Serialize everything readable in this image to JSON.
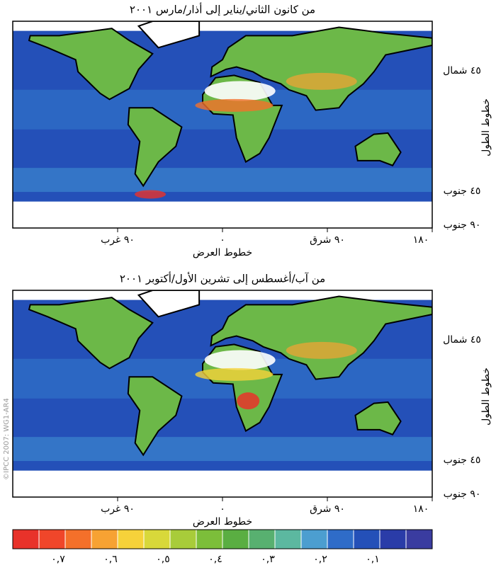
{
  "panels": [
    {
      "title": "من كانون الثاني/يناير إلى أذار/مارس ٢٠٠١"
    },
    {
      "title": "من آب/أغسطس إلى تشرين الأول/أكتوبر ٢٠٠١"
    }
  ],
  "x_axis": {
    "title": "خطوط العرض",
    "ticks": [
      "٩٠ غرب",
      "٠",
      "٩٠ شرق",
      "١٨٠"
    ]
  },
  "y_axis": {
    "title": "خطوط الطول",
    "ticks": [
      "٤٥ شمال",
      "٤٥ جنوب",
      "٩٠ جنوب"
    ]
  },
  "credit": "©IPCC 2007: WG1-AR4",
  "colorbar": {
    "colors": [
      "#e8322a",
      "#f0462a",
      "#f4702a",
      "#f7a233",
      "#f6d23a",
      "#d8d83a",
      "#a8cc3a",
      "#7cbe3a",
      "#5aae42",
      "#58b070",
      "#5cb8a0",
      "#4c9ed0",
      "#2f6cc8",
      "#2450b8",
      "#2a3ca8",
      "#3a3ca0"
    ],
    "labels": [
      "٠,٧",
      "٠,٦",
      "٠,٥",
      "٠,٤",
      "٠,٣",
      "٠,٢",
      "٠,١"
    ]
  }
}
